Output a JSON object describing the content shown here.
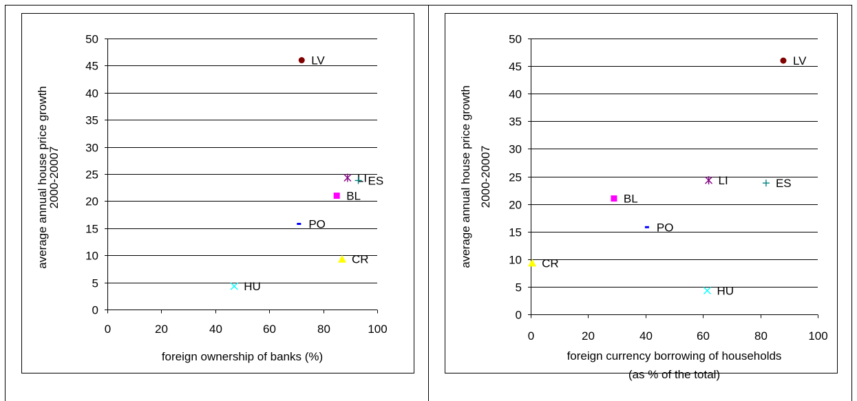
{
  "chart_data": [
    {
      "type": "scatter",
      "xlabel": "foreign ownership of banks (%)",
      "ylabel_lines": [
        "average annual house price growth",
        "2000-20007"
      ],
      "xlim": [
        0,
        100
      ],
      "ylim": [
        0,
        50
      ],
      "xticks": [
        "0",
        "20",
        "40",
        "60",
        "80",
        "100"
      ],
      "yticks": [
        "0",
        "5",
        "10",
        "15",
        "20",
        "25",
        "30",
        "35",
        "40",
        "45",
        "50"
      ],
      "grid": "horizontal",
      "points": [
        {
          "label": "LV",
          "x": 72,
          "y": 46,
          "marker": "circle",
          "color": "#800000"
        },
        {
          "label": "LI",
          "x": 89,
          "y": 24.3,
          "marker": "star",
          "color": "#800080"
        },
        {
          "label": "ES",
          "x": 93,
          "y": 23.8,
          "marker": "plus",
          "color": "#008080"
        },
        {
          "label": "BL",
          "x": 85,
          "y": 21,
          "marker": "square",
          "color": "#ff00ff"
        },
        {
          "label": "PO",
          "x": 71,
          "y": 15.8,
          "marker": "dash",
          "color": "#0000ff"
        },
        {
          "label": "CR",
          "x": 87,
          "y": 9.3,
          "marker": "triangle",
          "color": "#ffff00"
        },
        {
          "label": "HU",
          "x": 47,
          "y": 4.3,
          "marker": "x",
          "color": "#00ffff"
        }
      ]
    },
    {
      "type": "scatter",
      "xlabel_lines": [
        "foreign currency borrowing of households",
        "(as % of the total)"
      ],
      "ylabel_lines": [
        "average annual house price growth",
        "2000-20007"
      ],
      "xlim": [
        0,
        100
      ],
      "ylim": [
        0,
        50
      ],
      "xticks": [
        "0",
        "20",
        "40",
        "60",
        "80",
        "100"
      ],
      "yticks": [
        "0",
        "5",
        "10",
        "15",
        "20",
        "25",
        "30",
        "35",
        "40",
        "45",
        "50"
      ],
      "grid": "horizontal",
      "points": [
        {
          "label": "LV",
          "x": 88,
          "y": 46,
          "marker": "circle",
          "color": "#800000"
        },
        {
          "label": "LI",
          "x": 62,
          "y": 24.3,
          "marker": "star",
          "color": "#800080"
        },
        {
          "label": "ES",
          "x": 82,
          "y": 23.8,
          "marker": "plus",
          "color": "#008080"
        },
        {
          "label": "BL",
          "x": 29,
          "y": 21,
          "marker": "square",
          "color": "#ff00ff"
        },
        {
          "label": "PO",
          "x": 40.5,
          "y": 15.8,
          "marker": "dash",
          "color": "#0000ff"
        },
        {
          "label": "CR",
          "x": 0.5,
          "y": 9.3,
          "marker": "triangle",
          "color": "#ffff00"
        },
        {
          "label": "HU",
          "x": 61.5,
          "y": 4.3,
          "marker": "x",
          "color": "#00ffff"
        }
      ]
    }
  ]
}
